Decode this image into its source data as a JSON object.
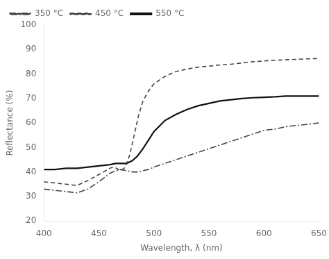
{
  "chart_data": {
    "type": "line",
    "xlabel": "Wavelength, λ (nm)",
    "ylabel": "Reflectance (%)",
    "xlim": [
      400,
      650
    ],
    "ylim": [
      20,
      100
    ],
    "xticks": [
      400,
      450,
      500,
      550,
      600,
      650
    ],
    "yticks": [
      20,
      30,
      40,
      50,
      60,
      70,
      80,
      90,
      100
    ],
    "grid": false,
    "legend": "upper left",
    "series": [
      {
        "name": "350 °C",
        "line_style": "dashdot",
        "color": "#444444",
        "x": [
          400,
          410,
          420,
          430,
          440,
          450,
          460,
          465,
          470,
          475,
          480,
          485,
          490,
          495,
          500,
          510,
          520,
          530,
          540,
          550,
          560,
          570,
          580,
          590,
          600,
          610,
          620,
          630,
          640,
          650
        ],
        "values": [
          33.0,
          32.5,
          32.0,
          31.5,
          33.0,
          36.0,
          39.5,
          40.5,
          41.0,
          40.5,
          40.0,
          40.0,
          40.5,
          41.0,
          42.0,
          43.5,
          45.0,
          46.5,
          48.0,
          49.5,
          51.0,
          52.5,
          54.0,
          55.5,
          57.0,
          57.5,
          58.5,
          59.0,
          59.5,
          60.0
        ]
      },
      {
        "name": "450 °C",
        "line_style": "dashed",
        "color": "#444444",
        "x": [
          400,
          410,
          420,
          430,
          440,
          450,
          460,
          463,
          466,
          470,
          474,
          478,
          482,
          486,
          490,
          495,
          500,
          510,
          520,
          530,
          540,
          550,
          560,
          570,
          580,
          590,
          600,
          610,
          620,
          630,
          640,
          650
        ],
        "values": [
          36.0,
          35.5,
          35.0,
          34.5,
          36.5,
          39.0,
          41.5,
          42.0,
          41.5,
          40.5,
          42.0,
          47.0,
          55.0,
          63.0,
          69.0,
          73.0,
          76.0,
          79.0,
          81.0,
          82.0,
          82.8,
          83.2,
          83.7,
          84.0,
          84.5,
          85.0,
          85.3,
          85.6,
          85.8,
          86.0,
          86.2,
          86.3
        ]
      },
      {
        "name": "550 °C",
        "line_style": "solid",
        "color": "#111111",
        "x": [
          400,
          410,
          420,
          430,
          440,
          450,
          460,
          465,
          470,
          475,
          480,
          485,
          490,
          495,
          500,
          510,
          520,
          530,
          540,
          550,
          560,
          570,
          580,
          590,
          600,
          610,
          620,
          630,
          640,
          650
        ],
        "values": [
          41.0,
          41.0,
          41.5,
          41.5,
          42.0,
          42.5,
          43.0,
          43.5,
          43.5,
          43.5,
          44.5,
          46.5,
          49.5,
          53.0,
          56.5,
          61.0,
          63.5,
          65.5,
          67.0,
          68.0,
          69.0,
          69.5,
          70.0,
          70.3,
          70.5,
          70.7,
          71.0,
          71.0,
          71.0,
          71.0
        ]
      }
    ]
  }
}
